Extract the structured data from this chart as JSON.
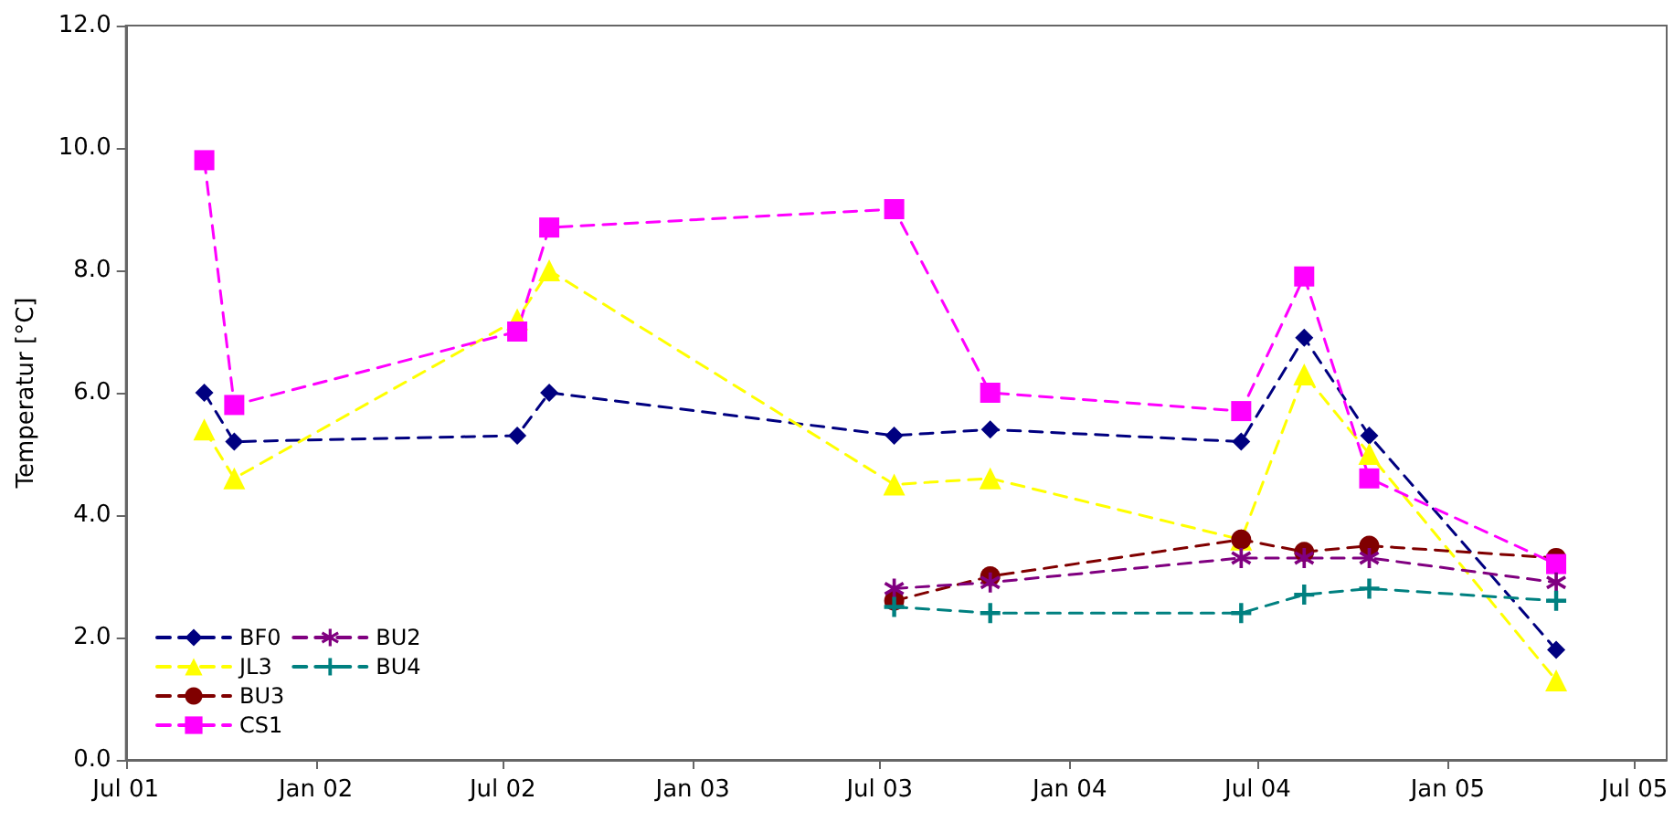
{
  "chart_data": {
    "type": "line",
    "ylabel": "Temperatur [°C]",
    "xlim": [
      "2001-07-01",
      "2005-08-01"
    ],
    "xticks": [
      {
        "value": "2001-07-01",
        "label": "Jul 01"
      },
      {
        "value": "2002-01-01",
        "label": "Jan 02"
      },
      {
        "value": "2002-07-01",
        "label": "Jul 02"
      },
      {
        "value": "2003-01-01",
        "label": "Jan 03"
      },
      {
        "value": "2003-07-01",
        "label": "Jul 03"
      },
      {
        "value": "2004-01-01",
        "label": "Jan 04"
      },
      {
        "value": "2004-07-01",
        "label": "Jul 04"
      },
      {
        "value": "2005-01-01",
        "label": "Jan 05"
      },
      {
        "value": "2005-07-01",
        "label": "Jul 05"
      }
    ],
    "ylim": [
      0,
      12
    ],
    "yticks": [
      {
        "value": 0,
        "label": "0.0"
      },
      {
        "value": 2,
        "label": "2.0"
      },
      {
        "value": 4,
        "label": "4.0"
      },
      {
        "value": 6,
        "label": "6.0"
      },
      {
        "value": 8,
        "label": "8.0"
      },
      {
        "value": 10,
        "label": "10.0"
      },
      {
        "value": 12,
        "label": "12.0"
      }
    ],
    "grid": false,
    "legend": "bottom left",
    "line_style": "dashed",
    "series": [
      {
        "name": "BF0",
        "color": "#000080",
        "marker": "diamond",
        "x": [
          "2001-09-15",
          "2001-10-14",
          "2002-07-15",
          "2002-08-15",
          "2003-07-15",
          "2003-10-16",
          "2004-06-15",
          "2004-08-15",
          "2004-10-17",
          "2005-04-16"
        ],
        "values": [
          6.0,
          5.2,
          5.3,
          6.0,
          5.3,
          5.4,
          5.2,
          6.9,
          5.3,
          1.8
        ]
      },
      {
        "name": "JL3",
        "color": "#ffff00",
        "marker": "triangle",
        "x": [
          "2001-09-15",
          "2001-10-14",
          "2002-07-15",
          "2002-08-15",
          "2003-07-15",
          "2003-10-16",
          "2004-06-15",
          "2004-08-15",
          "2004-10-17",
          "2005-04-16"
        ],
        "values": [
          5.4,
          4.6,
          7.2,
          8.0,
          4.5,
          4.6,
          3.6,
          6.3,
          5.0,
          1.3
        ]
      },
      {
        "name": "BU3",
        "color": "#800000",
        "marker": "circle",
        "x": [
          "2003-07-15",
          "2003-10-16",
          "2004-06-15",
          "2004-08-15",
          "2004-10-17",
          "2005-04-16"
        ],
        "values": [
          2.6,
          3.0,
          3.6,
          3.4,
          3.5,
          3.3
        ]
      },
      {
        "name": "CS1",
        "color": "#ff00ff",
        "marker": "square",
        "x": [
          "2001-09-15",
          "2001-10-14",
          "2002-07-15",
          "2002-08-15",
          "2003-07-15",
          "2003-10-16",
          "2004-06-15",
          "2004-08-15",
          "2004-10-17",
          "2005-04-16"
        ],
        "values": [
          9.8,
          5.8,
          7.0,
          8.7,
          9.0,
          6.0,
          5.7,
          7.9,
          4.6,
          3.2
        ]
      },
      {
        "name": "BU2",
        "color": "#800080",
        "marker": "star",
        "x": [
          "2003-07-15",
          "2003-10-16",
          "2004-06-15",
          "2004-08-15",
          "2004-10-17",
          "2005-04-16"
        ],
        "values": [
          2.8,
          2.9,
          3.3,
          3.3,
          3.3,
          2.9
        ]
      },
      {
        "name": "BU4",
        "color": "#008080",
        "marker": "cross",
        "x": [
          "2003-07-15",
          "2003-10-16",
          "2004-06-15",
          "2004-08-15",
          "2004-10-17",
          "2005-04-16"
        ],
        "values": [
          2.5,
          2.4,
          2.4,
          2.7,
          2.8,
          2.6
        ]
      }
    ]
  }
}
